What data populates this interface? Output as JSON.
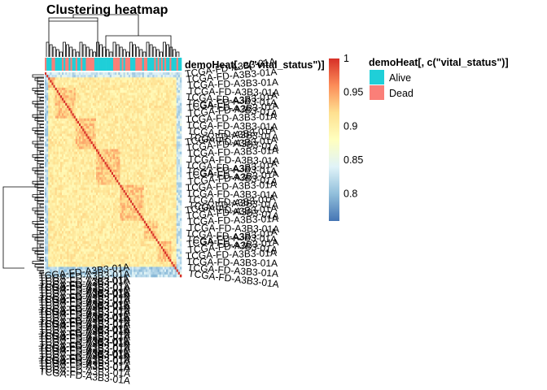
{
  "chart_data": {
    "type": "heatmap",
    "title": "Clustering heatmap",
    "annotation": {
      "name": "demoHeat[, c(\"vital_status\")]",
      "categories": [
        {
          "label": "Alive",
          "color": "#1fcfd8"
        },
        {
          "label": "Dead",
          "color": "#fa7f78"
        }
      ]
    },
    "color_scale": {
      "min": 0.76,
      "max": 1.0,
      "ticks": [
        {
          "label": "1",
          "value": 1.0
        },
        {
          "label": "0.95",
          "value": 0.95
        },
        {
          "label": "0.9",
          "value": 0.9
        },
        {
          "label": "0.85",
          "value": 0.85
        },
        {
          "label": "0.8",
          "value": 0.8
        }
      ],
      "colors": [
        "#4575b4",
        "#91bfdb",
        "#e0f3f8",
        "#ffffbf",
        "#fee090",
        "#fc8d59",
        "#d73027"
      ]
    },
    "row_label_sample": "TCGA-FD-A3B3-01A",
    "legend_placement": "right"
  }
}
